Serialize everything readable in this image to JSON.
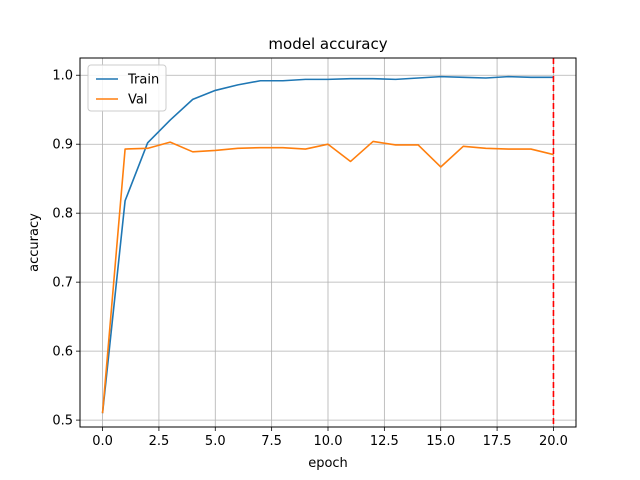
{
  "chart_data": {
    "type": "line",
    "title": "model accuracy",
    "xlabel": "epoch",
    "ylabel": "accuracy",
    "xlim": [
      -1,
      21
    ],
    "ylim": [
      0.49,
      1.025
    ],
    "x_ticks": [
      0.0,
      2.5,
      5.0,
      7.5,
      10.0,
      12.5,
      15.0,
      17.5,
      20.0
    ],
    "y_ticks": [
      0.5,
      0.6,
      0.7,
      0.8,
      0.9,
      1.0
    ],
    "grid": true,
    "legend_position": "top-left",
    "x": [
      0,
      1,
      2,
      3,
      4,
      5,
      6,
      7,
      8,
      9,
      10,
      11,
      12,
      13,
      14,
      15,
      16,
      17,
      18,
      19,
      20
    ],
    "series": [
      {
        "name": "Train",
        "color": "#1f77b4",
        "values": [
          0.51,
          0.818,
          0.902,
          0.935,
          0.965,
          0.978,
          0.986,
          0.992,
          0.992,
          0.994,
          0.994,
          0.995,
          0.995,
          0.994,
          0.996,
          0.998,
          0.997,
          0.996,
          0.998,
          0.997,
          0.997
        ]
      },
      {
        "name": "Val",
        "color": "#ff7f0e",
        "values": [
          0.51,
          0.893,
          0.894,
          0.903,
          0.889,
          0.891,
          0.894,
          0.895,
          0.895,
          0.893,
          0.9,
          0.875,
          0.904,
          0.899,
          0.899,
          0.867,
          0.897,
          0.894,
          0.893,
          0.893,
          0.885
        ]
      }
    ],
    "annotations": [
      {
        "type": "vertical-line",
        "x": 20,
        "style": "dashed",
        "color": "#ff0000"
      }
    ]
  }
}
